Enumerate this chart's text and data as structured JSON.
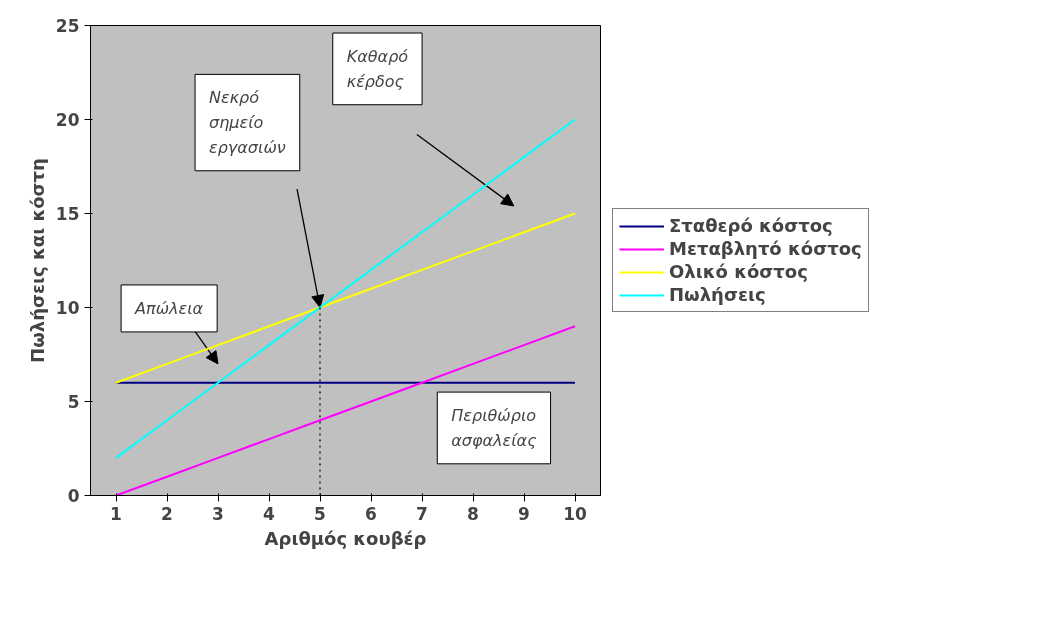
{
  "chart_data": {
    "type": "line",
    "xlabel": "Αριθμός κουβέρ",
    "ylabel": "Πωλήσεις και κόστη",
    "categories": [
      "1",
      "2",
      "3",
      "4",
      "5",
      "6",
      "7",
      "8",
      "9",
      "10"
    ],
    "series": [
      {
        "name": "Σταθερό κόστος",
        "color": "#000080",
        "values": [
          6,
          6,
          6,
          6,
          6,
          6,
          6,
          6,
          6,
          6
        ]
      },
      {
        "name": "Μεταβλητό κόστος",
        "color": "#ff00ff",
        "values": [
          0,
          1,
          2,
          3,
          4,
          5,
          6,
          7,
          8,
          9
        ]
      },
      {
        "name": "Ολικό κόστος",
        "color": "#ffff00",
        "values": [
          6,
          7,
          8,
          9,
          10,
          11,
          12,
          13,
          14,
          15
        ]
      },
      {
        "name": "Πωλήσεις",
        "color": "#00ffff",
        "values": [
          2,
          4,
          6,
          8,
          10,
          12,
          14,
          16,
          18,
          20
        ]
      }
    ],
    "ylim": [
      0,
      25
    ],
    "yticks": [
      0,
      5,
      10,
      15,
      20,
      25
    ],
    "ref_lines": [
      {
        "axis": "x",
        "value": "5",
        "line_style": "dotted",
        "color": "#000000"
      }
    ],
    "annotations": [
      "Απώλεια",
      "Νεκρό\nσημείο\nεργασιών",
      "Καθαρό\nκέρδος",
      "Περιθώριο\nασφαλείας"
    ],
    "legend": "right",
    "grid": false,
    "marker": "none",
    "line_style": "solid"
  }
}
